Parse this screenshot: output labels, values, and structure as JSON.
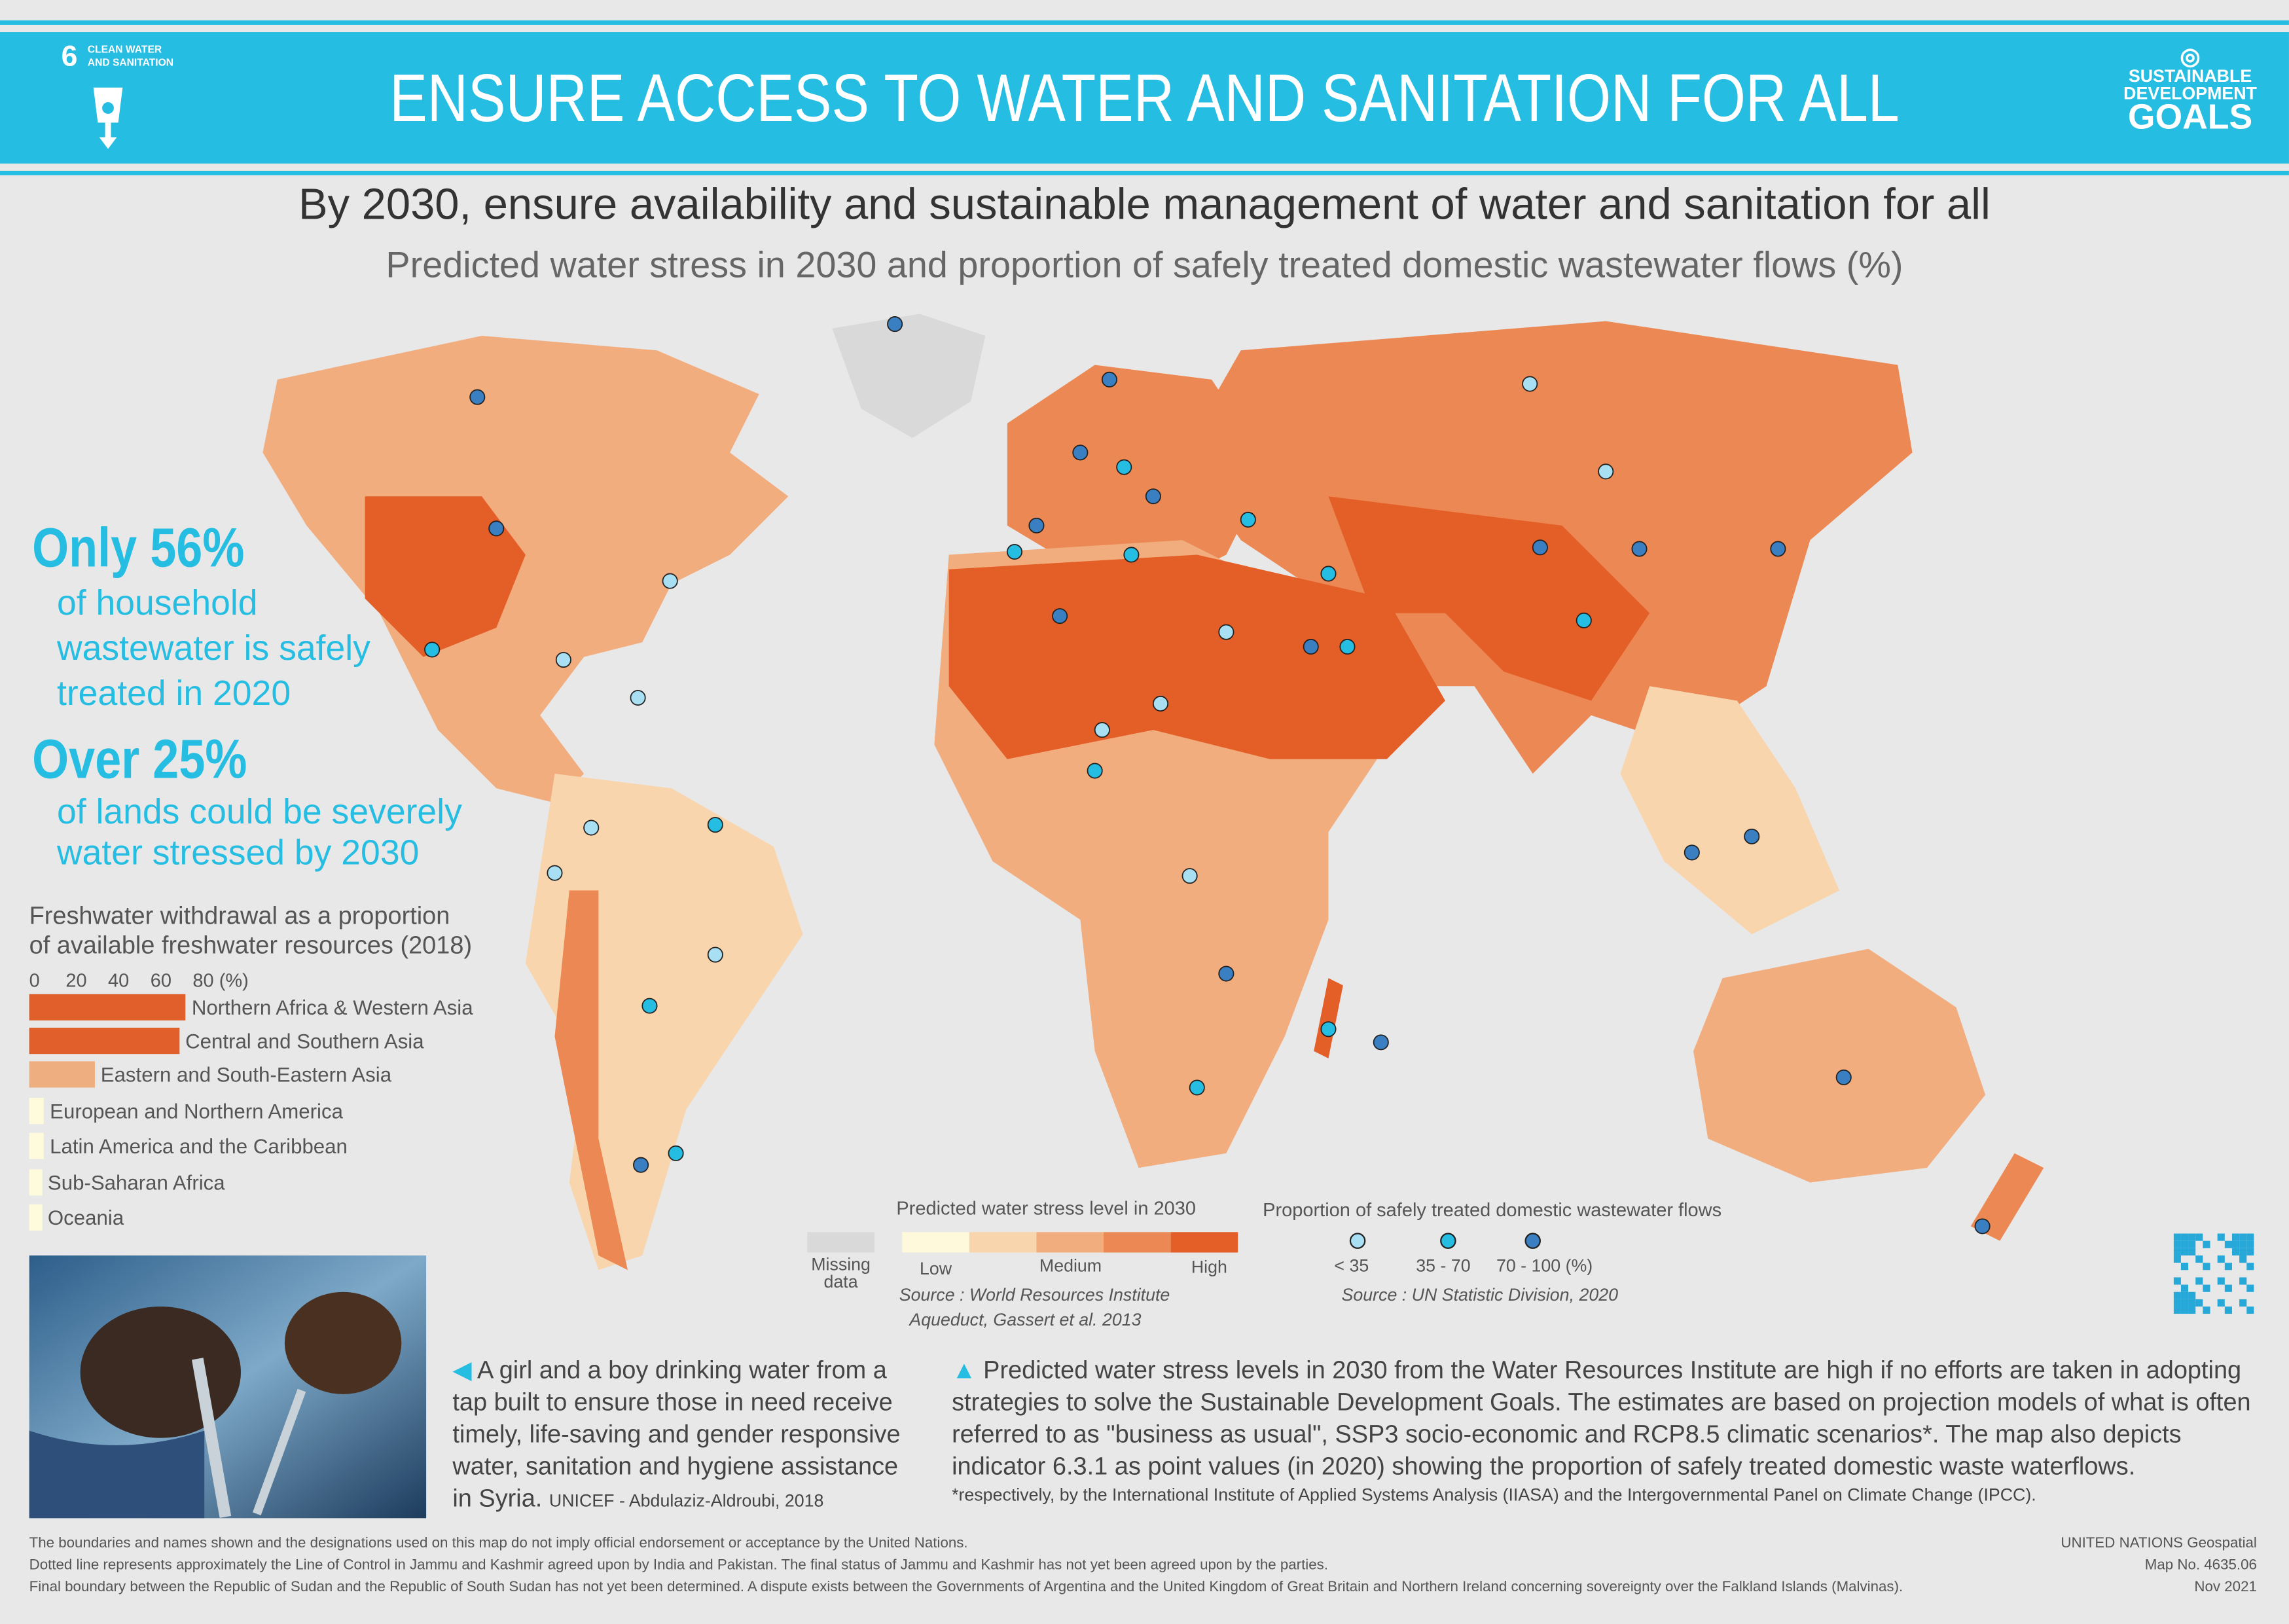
{
  "header": {
    "goal_number": "6",
    "goal_name": "CLEAN WATER AND SANITATION",
    "banner_title": "ENSURE ACCESS TO WATER AND SANITATION FOR ALL",
    "sdg_logo": [
      "SUSTAINABLE",
      "DEVELOPMENT",
      "GOALS"
    ]
  },
  "headline": "By 2030, ensure availability and sustainable management of water and sanitation for all",
  "subheadline": "Predicted water stress in 2030 and proportion of safely treated domestic wastewater flows (%)",
  "stats": [
    {
      "big": "Only 56%",
      "text": [
        "of household",
        "wastewater is safely",
        "treated in 2020"
      ]
    },
    {
      "big": "Over 25%",
      "text": [
        "of lands could be severely",
        "water stressed by 2030"
      ]
    }
  ],
  "chart_data": {
    "type": "bar",
    "title": "Freshwater withdrawal as a proportion of available freshwater resources (2018)",
    "title_lines": [
      "Freshwater withdrawal as a proportion",
      "of available freshwater resources (2018)"
    ],
    "ticks": [
      "0",
      "20",
      "40",
      "60",
      "80 (%)"
    ],
    "xlim": [
      0,
      80
    ],
    "categories": [
      "Northern Africa & Western Asia",
      "Central and Southern Asia",
      "Eastern and South-Eastern Asia",
      "European and Northern America",
      "Latin America and the Caribbean",
      "Sub-Saharan Africa",
      "Oceania"
    ],
    "values": [
      74,
      71,
      31,
      7,
      7,
      6,
      6
    ],
    "colors": [
      "#e05f2b",
      "#e05f2b",
      "#efae80",
      "#fdfbdc",
      "#fdfbdc",
      "#fdfbdc",
      "#fdfbdc"
    ]
  },
  "legend_stress": {
    "title": "Predicted water stress level in 2030",
    "missing": "Missing data",
    "low": "Low",
    "medium": "Medium",
    "high": "High",
    "colors": [
      "#fef9da",
      "#f9d5ad",
      "#f2ad7f",
      "#ec8853",
      "#e45e27"
    ],
    "missing_color": "#d8d9d8",
    "source": [
      "Source : World Resources Institute",
      "Aqueduct, Gassert et al. 2013"
    ]
  },
  "legend_wastewater": {
    "title": "Proportion of safely treated domestic wastewater flows",
    "classes": [
      {
        "label": "< 35",
        "color": "#a9dff2"
      },
      {
        "label": "35 - 70",
        "color": "#26bde2"
      },
      {
        "label": "70 - 100 (%)",
        "color": "#3a7fc1"
      }
    ],
    "source": "Source : UN Statistic Division, 2020"
  },
  "photo_caption": {
    "text": "A girl and a boy drinking water from a tap built to ensure those in need receive timely, life-saving and gender responsive water, sanitation and hygiene assistance in Syria.",
    "credit": "UNICEF - Abdulaziz-Aldroubi, 2018"
  },
  "map_caption": {
    "text": "Predicted water stress levels in 2030 from the Water Resources Institute are high if no efforts are taken in adopting strategies to solve the Sustainable Development Goals. The estimates are based on projection models of what is often referred to as \"business as usual\", SSP3 socio-economic and RCP8.5 climatic scenarios*. The map also depicts indicator 6.3.1 as point values (in 2020) showing the proportion of safely treated domestic waste waterflows.",
    "footnote": "*respectively, by the International Institute of Applied Systems Analysis (IIASA) and the Intergovernmental Panel on Climate Change (IPCC)."
  },
  "disclaimer": [
    "The boundaries and names shown and the designations used on this map do not imply official endorsement or acceptance by the United Nations.",
    "Dotted line represents approximately the Line of Control in Jammu and Kashmir agreed upon by India and Pakistan. The final status of Jammu and Kashmir has not yet been agreed upon by the parties.",
    "Final boundary between the Republic of Sudan and the Republic of South Sudan has not yet been determined. A dispute exists between the Governments of Argentina and the United Kingdom of Great Britain and Northern Ireland concerning sovereignty over the Falkland Islands (Malvinas)."
  ],
  "map_info": [
    "UNITED NATIONS Geospatial",
    "Map No. 4635.06",
    "Nov 2021"
  ]
}
